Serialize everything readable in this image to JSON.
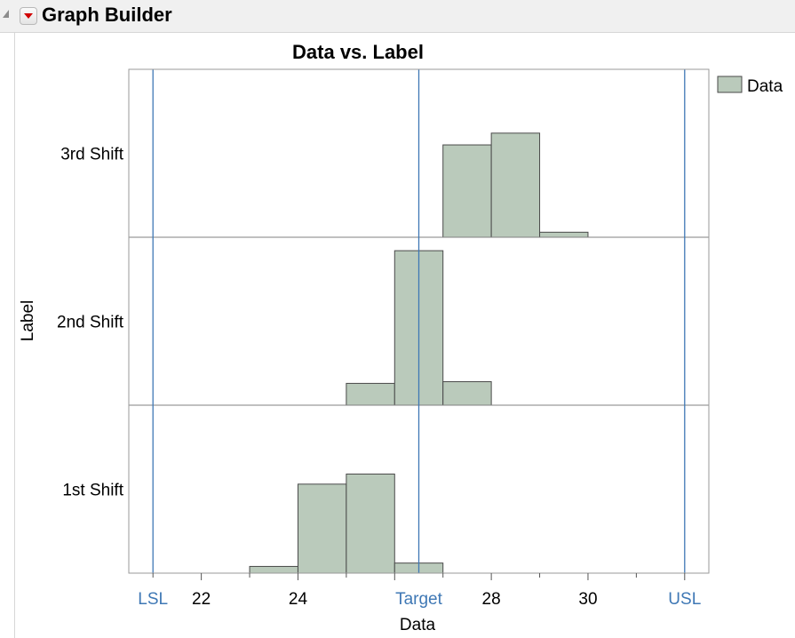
{
  "header": {
    "title": "Graph Builder"
  },
  "colors": {
    "bar_fill": "#bacabb",
    "bar_stroke": "#4a4a4a",
    "ref_line": "#3f78b5",
    "ref_label": "#3f78b5",
    "frame": "#9a9a9a",
    "divider": "#808080"
  },
  "chart_data": {
    "type": "histogram",
    "title": "Data vs. Label",
    "xlabel": "Data",
    "ylabel": "Label",
    "xlim": [
      20.5,
      32.5
    ],
    "x_ticks": [
      {
        "value": 22,
        "label": "22"
      },
      {
        "value": 24,
        "label": "24"
      },
      {
        "value": 28,
        "label": "28"
      },
      {
        "value": 30,
        "label": "30"
      }
    ],
    "reference_lines": [
      {
        "value": 21,
        "label": "LSL"
      },
      {
        "value": 26.5,
        "label": "Target"
      },
      {
        "value": 32,
        "label": "USL"
      }
    ],
    "legend": {
      "position": "right",
      "entries": [
        "Data"
      ]
    },
    "bin_width": 1,
    "panels": [
      {
        "label": "3rd Shift",
        "bins": [
          {
            "x0": 27,
            "height": 0.55
          },
          {
            "x0": 28,
            "height": 0.62
          },
          {
            "x0": 29,
            "height": 0.03
          }
        ]
      },
      {
        "label": "2nd Shift",
        "bins": [
          {
            "x0": 25,
            "height": 0.13
          },
          {
            "x0": 26,
            "height": 0.92
          },
          {
            "x0": 27,
            "height": 0.14
          }
        ]
      },
      {
        "label": "1st Shift",
        "bins": [
          {
            "x0": 23,
            "height": 0.04
          },
          {
            "x0": 24,
            "height": 0.53
          },
          {
            "x0": 25,
            "height": 0.59
          },
          {
            "x0": 26,
            "height": 0.06
          }
        ]
      }
    ]
  }
}
